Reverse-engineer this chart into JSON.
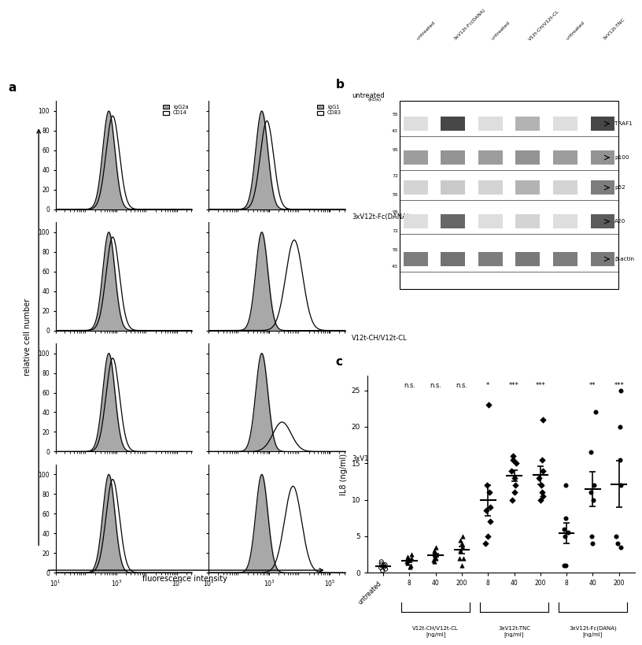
{
  "fig_width": 8.0,
  "fig_height": 6.37,
  "background_color": "#ffffff",
  "panel_a": {
    "rows": 4,
    "cols": 2,
    "row_labels": [
      "untreated",
      "3xV12t-Fc(DANA)",
      "V12t-CH/V12t-CL",
      "3xV12t-TNC"
    ],
    "col1_legend": [
      "IgG2a",
      "CD14"
    ],
    "col2_legend": [
      "IgG1",
      "CD83"
    ],
    "x_label": "fluorescence intensity",
    "y_label": "relative cell number",
    "y_ticks": [
      0,
      20,
      40,
      60,
      80,
      100
    ],
    "fill_color": "#999999",
    "line_color": "#000000"
  },
  "panel_b": {
    "col_labels": [
      "untreated",
      "3xV12t-Fc(DANA)",
      "untreated",
      "V12t-CH/V12t-CL",
      "untreated",
      "3xV12t-TNC"
    ],
    "row_labels": [
      "TRAF1",
      "p100",
      "p52",
      "A20",
      "β-actin"
    ]
  },
  "panel_c": {
    "ylabel": "IL8 (ng/ml)",
    "ylim": [
      0,
      27
    ],
    "yticks": [
      0,
      5,
      10,
      15,
      20,
      25
    ],
    "significance": [
      "",
      "n.s.",
      "n.s.",
      "n.s.",
      "*",
      "***",
      "***",
      "",
      "**",
      "***"
    ],
    "untreated_data": [
      0.3,
      0.5,
      0.8,
      1.0,
      1.2,
      1.5,
      0.7,
      1.1
    ],
    "cl_8_data": [
      0.8,
      1.0,
      1.5,
      2.0,
      2.5,
      1.8,
      2.2,
      1.3
    ],
    "cl_40_data": [
      1.5,
      2.0,
      2.5,
      3.0,
      3.5,
      1.8,
      2.8,
      2.2
    ],
    "cl_200_data": [
      1.0,
      2.0,
      3.0,
      4.0,
      5.0,
      2.0,
      3.5,
      4.5
    ],
    "tnc_8_data": [
      4.0,
      7.0,
      9.0,
      11.0,
      12.0,
      8.5,
      23.0,
      5.0
    ],
    "tnc_40_data": [
      10.0,
      13.0,
      14.0,
      15.0,
      16.0,
      12.0,
      15.5,
      11.0
    ],
    "tnc_200_data": [
      10.0,
      13.0,
      14.0,
      15.5,
      21.0,
      11.0,
      12.0,
      10.5
    ],
    "dana_8_data": [
      1.0,
      5.0,
      6.0,
      7.5,
      12.0,
      1.0,
      5.5
    ],
    "dana_40_data": [
      4.0,
      5.0,
      10.0,
      11.0,
      12.0,
      16.5,
      22.0
    ],
    "dana_200_data": [
      3.5,
      4.0,
      5.0,
      12.0,
      15.5,
      20.0,
      25.0
    ]
  }
}
